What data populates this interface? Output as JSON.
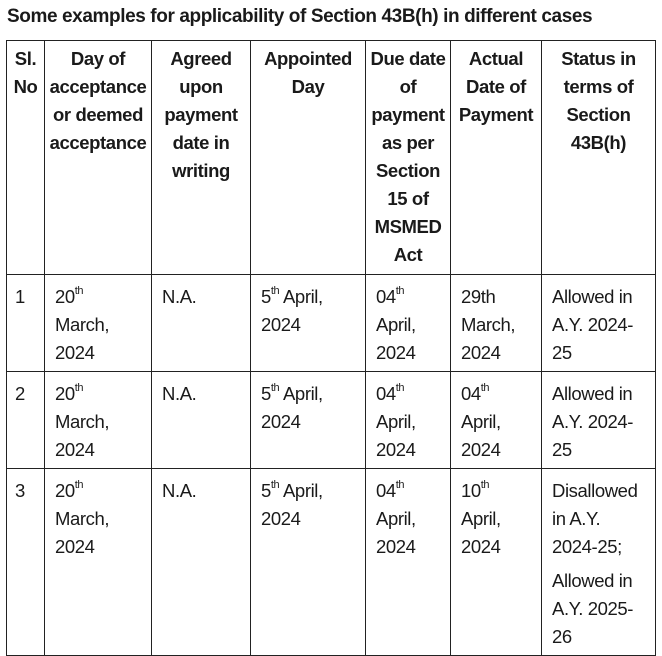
{
  "title": "Some examples for applicability of Section 43B(h) in different cases",
  "table": {
    "headers": [
      "Sl.\nNo",
      "Day of\nacceptance\nor deemed\nacceptance",
      "Agreed\nupon\npayment\ndate in\nwriting",
      "Appointed\nDay",
      "Due date\nof\npayment\nas per\nSection\n15 of\nMSMED\nAct",
      "Actual\nDate of\nPayment",
      "Status in\nterms of\nSection\n43B(h)"
    ],
    "rows": [
      [
        {
          "text": "1"
        },
        {
          "main": "20",
          "sup": "th",
          "rest": "\nMarch,\n2024"
        },
        {
          "text": "N.A."
        },
        {
          "main": "5",
          "sup": "th",
          "rest": " April,\n2024"
        },
        {
          "main": "04",
          "sup": "th",
          "rest": "\nApril,\n2024"
        },
        {
          "text": "29th\nMarch,\n2024"
        },
        {
          "text": "Allowed in\nA.Y. 2024-\n25"
        }
      ],
      [
        {
          "text": "2"
        },
        {
          "main": "20",
          "sup": "th",
          "rest": "\nMarch,\n2024"
        },
        {
          "text": "N.A."
        },
        {
          "main": "5",
          "sup": "th",
          "rest": " April,\n2024"
        },
        {
          "main": "04",
          "sup": "th",
          "rest": "\nApril,\n2024"
        },
        {
          "main": "04",
          "sup": "th",
          "rest": "\nApril,\n2024"
        },
        {
          "text": "Allowed in\nA.Y. 2024-\n25"
        }
      ],
      [
        {
          "text": "3"
        },
        {
          "main": "20",
          "sup": "th",
          "rest": "\nMarch,\n2024"
        },
        {
          "text": "N.A."
        },
        {
          "main": "5",
          "sup": "th",
          "rest": " April,\n2024"
        },
        {
          "main": "04",
          "sup": "th",
          "rest": "\nApril,\n2024"
        },
        {
          "main": "10",
          "sup": "th",
          "rest": "\nApril,\n2024"
        },
        {
          "text": "Disallowed\nin A.Y.\n2024-25;",
          "text2": "Allowed in\nA.Y. 2025-\n26"
        }
      ]
    ]
  }
}
